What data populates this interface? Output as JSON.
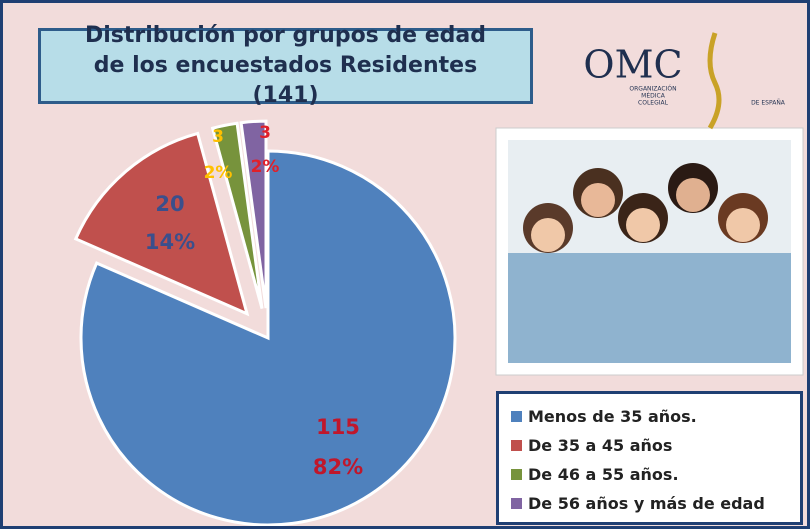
{
  "chart_data": {
    "type": "pie",
    "title": "Distribución por grupos de edad de los encuestados Residentes (141)",
    "categories": [
      "Menos de 35 años.",
      "De 35 a 45 años",
      "De 46 a 55 años.",
      "De 56 años y más de edad"
    ],
    "values": [
      115,
      20,
      3,
      3
    ],
    "percent_labels": [
      "82%",
      "14%",
      "2%",
      "2%"
    ],
    "colors": [
      "#4f81bd",
      "#c0504d",
      "#77933c",
      "#8064a2"
    ],
    "label_colors": [
      "#c0172b",
      "#3b4f8c",
      "#ffc000",
      "#e0202a"
    ]
  },
  "logo": {
    "name": "OMC",
    "line1": "ORGANIZACIÓN",
    "line2": "MÉDICA",
    "line3": "COLEGIAL",
    "line4": "DE ESPAÑA"
  }
}
